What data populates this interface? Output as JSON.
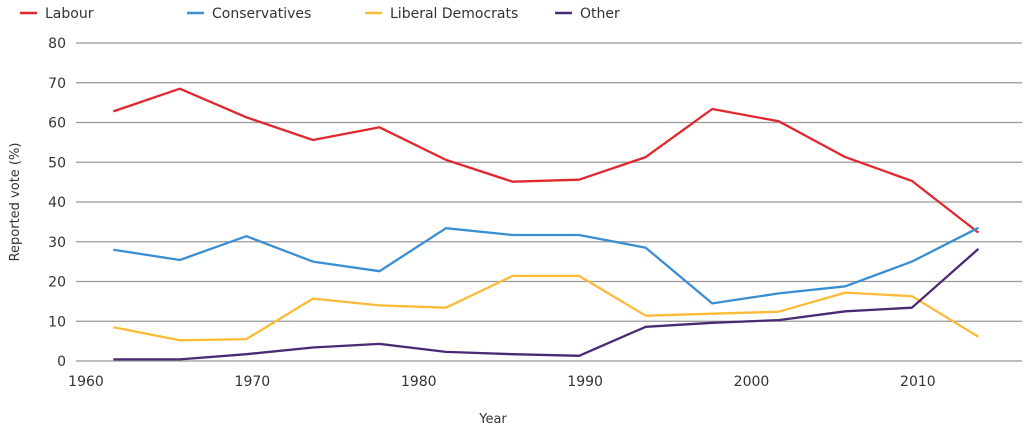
{
  "chart_data": {
    "type": "line",
    "title": "",
    "xlabel": "Year",
    "ylabel": "Reported vote (%)",
    "xlim": [
      1960,
      2016.5
    ],
    "ylim": [
      0,
      80
    ],
    "grid": "horizontal",
    "legend_position": "top-left",
    "x_ticks": [
      "1960",
      "1970",
      "1980",
      "1990",
      "2000",
      "2010"
    ],
    "y_ticks": [
      "0",
      "10",
      "20",
      "30",
      "40",
      "50",
      "60",
      "70",
      "80"
    ],
    "x": [
      1962,
      1966,
      1970,
      1974,
      1978,
      1982,
      1986,
      1990,
      1994,
      1998,
      2002,
      2006,
      2010,
      2014
    ],
    "series": [
      {
        "name": "Labour",
        "color": "#e0282e",
        "values": [
          62.8,
          68.5,
          61.3,
          55.6,
          58.8,
          50.6,
          45.1,
          45.6,
          51.3,
          63.4,
          60.3,
          51.3,
          45.3,
          32.3
        ]
      },
      {
        "name": "Conservatives",
        "color": "#3a8fd2",
        "values": [
          28.0,
          25.4,
          31.4,
          25.0,
          22.6,
          33.4,
          31.7,
          31.7,
          28.5,
          14.5,
          17.0,
          18.8,
          25.0,
          33.5
        ]
      },
      {
        "name": "Liberal Democrats",
        "color": "#fbbb37",
        "values": [
          8.5,
          5.2,
          5.5,
          15.7,
          14.0,
          13.4,
          21.4,
          21.4,
          11.4,
          11.9,
          12.4,
          17.2,
          16.3,
          6.1
        ]
      },
      {
        "name": "Other",
        "color": "#4a2a72",
        "values": [
          0.4,
          0.4,
          1.7,
          3.4,
          4.3,
          2.3,
          1.7,
          1.3,
          8.6,
          9.6,
          10.3,
          12.5,
          13.4,
          28.2
        ]
      }
    ]
  }
}
